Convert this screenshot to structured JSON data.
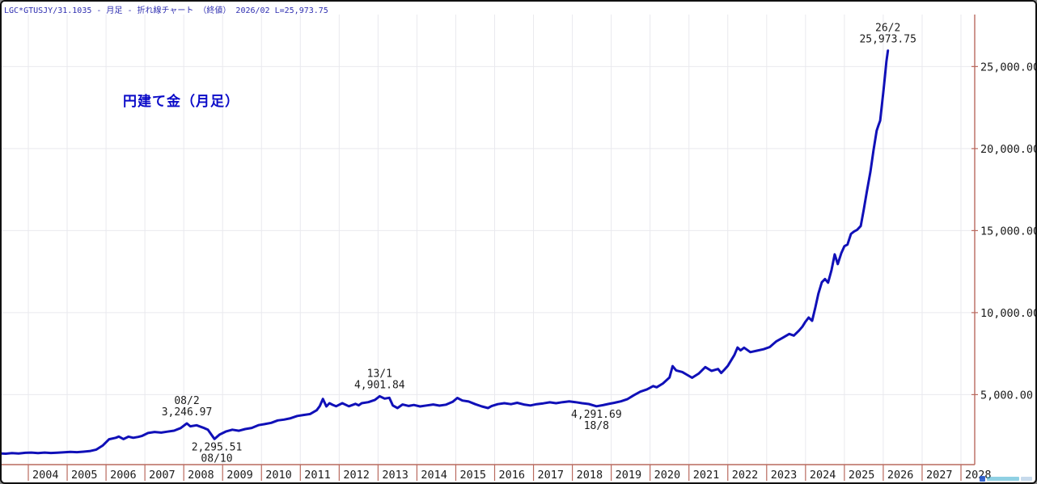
{
  "header": {
    "title": "LGC*GTUSJY/31.1035 - 月足 - 折れ線チャート （終値）  2026/02 L=25,973.75"
  },
  "chart_title": "円建て金（月足）",
  "colors": {
    "line": "#1010b8",
    "axis": "#b96a5f",
    "grid": "#e9e9ee",
    "header_text": "#2e2eb0",
    "title_text": "#0a0ac8",
    "label_text": "#1a1a1a",
    "watermark": [
      "#2255cc",
      "#33aacc",
      "#99bbdd"
    ]
  },
  "chart_data": {
    "type": "line",
    "title": "円建て金（月足）",
    "subtitle": "LGC*GTUSJY/31.1035 - 月足 - 折れ線チャート （終値）",
    "latest": {
      "date": "26/2",
      "close": 25973.75
    },
    "xlabel": "",
    "ylabel": "",
    "x_ticks": [
      2004,
      2005,
      2006,
      2007,
      2008,
      2009,
      2010,
      2011,
      2012,
      2013,
      2014,
      2015,
      2016,
      2017,
      2018,
      2019,
      2020,
      2021,
      2022,
      2023,
      2024,
      2025,
      2026,
      2027,
      2028
    ],
    "y_ticks": [
      {
        "value": 5000,
        "label": "5,000.00"
      },
      {
        "value": 10000,
        "label": "10,000.00"
      },
      {
        "value": 15000,
        "label": "15,000.00"
      },
      {
        "value": 20000,
        "label": "20,000.00"
      },
      {
        "value": 25000,
        "label": "25,000.00"
      }
    ],
    "x_range": [
      2003.25,
      2028.95
    ],
    "y_range": [
      700,
      28200
    ],
    "grid": true,
    "legend_position": "none",
    "annotations": [
      {
        "x": 2008.08,
        "value": 3246.97,
        "lines": [
          "08/2",
          "3,246.97"
        ],
        "position": "above"
      },
      {
        "x": 2008.85,
        "value": 2295.51,
        "lines": [
          "2,295.51",
          "08/10"
        ],
        "position": "below"
      },
      {
        "x": 2013.04,
        "value": 4901.84,
        "lines": [
          "13/1",
          "4,901.84"
        ],
        "position": "above"
      },
      {
        "x": 2018.62,
        "value": 4291.69,
        "lines": [
          "4,291.69",
          "18/8"
        ],
        "position": "below"
      },
      {
        "x": 2026.12,
        "value": 25973.75,
        "lines": [
          "26/2",
          "25,973.75"
        ],
        "position": "above"
      }
    ],
    "series": [
      {
        "name": "LGC*GTUSJY/31.1035 終値",
        "points": [
          [
            2003.27,
            1420
          ],
          [
            2003.42,
            1400
          ],
          [
            2003.58,
            1435
          ],
          [
            2003.75,
            1415
          ],
          [
            2003.92,
            1455
          ],
          [
            2004.08,
            1470
          ],
          [
            2004.25,
            1440
          ],
          [
            2004.42,
            1468
          ],
          [
            2004.58,
            1445
          ],
          [
            2004.75,
            1462
          ],
          [
            2004.92,
            1490
          ],
          [
            2005.08,
            1505
          ],
          [
            2005.25,
            1492
          ],
          [
            2005.42,
            1520
          ],
          [
            2005.58,
            1555
          ],
          [
            2005.75,
            1650
          ],
          [
            2005.92,
            1905
          ],
          [
            2006.08,
            2280
          ],
          [
            2006.25,
            2370
          ],
          [
            2006.33,
            2445
          ],
          [
            2006.45,
            2290
          ],
          [
            2006.58,
            2440
          ],
          [
            2006.7,
            2370
          ],
          [
            2006.83,
            2425
          ],
          [
            2006.92,
            2480
          ],
          [
            2007.08,
            2660
          ],
          [
            2007.25,
            2725
          ],
          [
            2007.42,
            2685
          ],
          [
            2007.58,
            2745
          ],
          [
            2007.75,
            2805
          ],
          [
            2007.92,
            2960
          ],
          [
            2008.08,
            3246.97
          ],
          [
            2008.17,
            3070
          ],
          [
            2008.33,
            3135
          ],
          [
            2008.5,
            2985
          ],
          [
            2008.62,
            2860
          ],
          [
            2008.79,
            2295.51
          ],
          [
            2008.92,
            2560
          ],
          [
            2009.08,
            2750
          ],
          [
            2009.25,
            2860
          ],
          [
            2009.42,
            2800
          ],
          [
            2009.58,
            2900
          ],
          [
            2009.75,
            2970
          ],
          [
            2009.92,
            3140
          ],
          [
            2010.08,
            3200
          ],
          [
            2010.25,
            3280
          ],
          [
            2010.42,
            3430
          ],
          [
            2010.58,
            3480
          ],
          [
            2010.75,
            3560
          ],
          [
            2010.92,
            3700
          ],
          [
            2011.08,
            3760
          ],
          [
            2011.25,
            3820
          ],
          [
            2011.42,
            4050
          ],
          [
            2011.5,
            4300
          ],
          [
            2011.58,
            4740
          ],
          [
            2011.67,
            4280
          ],
          [
            2011.75,
            4480
          ],
          [
            2011.83,
            4380
          ],
          [
            2011.92,
            4290
          ],
          [
            2012.08,
            4480
          ],
          [
            2012.25,
            4290
          ],
          [
            2012.42,
            4440
          ],
          [
            2012.5,
            4350
          ],
          [
            2012.58,
            4480
          ],
          [
            2012.75,
            4540
          ],
          [
            2012.92,
            4680
          ],
          [
            2013.04,
            4901.84
          ],
          [
            2013.17,
            4760
          ],
          [
            2013.29,
            4810
          ],
          [
            2013.38,
            4340
          ],
          [
            2013.5,
            4180
          ],
          [
            2013.63,
            4400
          ],
          [
            2013.79,
            4310
          ],
          [
            2013.92,
            4370
          ],
          [
            2014.08,
            4280
          ],
          [
            2014.25,
            4340
          ],
          [
            2014.42,
            4400
          ],
          [
            2014.58,
            4330
          ],
          [
            2014.75,
            4390
          ],
          [
            2014.92,
            4560
          ],
          [
            2015.04,
            4800
          ],
          [
            2015.17,
            4640
          ],
          [
            2015.33,
            4580
          ],
          [
            2015.5,
            4420
          ],
          [
            2015.67,
            4280
          ],
          [
            2015.83,
            4180
          ],
          [
            2015.92,
            4300
          ],
          [
            2016.08,
            4420
          ],
          [
            2016.25,
            4480
          ],
          [
            2016.42,
            4420
          ],
          [
            2016.58,
            4500
          ],
          [
            2016.75,
            4400
          ],
          [
            2016.92,
            4340
          ],
          [
            2017.08,
            4420
          ],
          [
            2017.25,
            4470
          ],
          [
            2017.42,
            4530
          ],
          [
            2017.58,
            4480
          ],
          [
            2017.75,
            4540
          ],
          [
            2017.92,
            4590
          ],
          [
            2018.08,
            4540
          ],
          [
            2018.25,
            4480
          ],
          [
            2018.42,
            4430
          ],
          [
            2018.62,
            4291.69
          ],
          [
            2018.79,
            4360
          ],
          [
            2018.92,
            4430
          ],
          [
            2019.08,
            4500
          ],
          [
            2019.25,
            4590
          ],
          [
            2019.42,
            4730
          ],
          [
            2019.58,
            4960
          ],
          [
            2019.75,
            5180
          ],
          [
            2019.92,
            5320
          ],
          [
            2020.08,
            5520
          ],
          [
            2020.17,
            5450
          ],
          [
            2020.33,
            5680
          ],
          [
            2020.5,
            6050
          ],
          [
            2020.58,
            6740
          ],
          [
            2020.67,
            6480
          ],
          [
            2020.83,
            6380
          ],
          [
            2020.92,
            6250
          ],
          [
            2021.08,
            6030
          ],
          [
            2021.25,
            6280
          ],
          [
            2021.42,
            6680
          ],
          [
            2021.58,
            6450
          ],
          [
            2021.75,
            6560
          ],
          [
            2021.83,
            6320
          ],
          [
            2021.92,
            6540
          ],
          [
            2022.0,
            6760
          ],
          [
            2022.17,
            7420
          ],
          [
            2022.25,
            7870
          ],
          [
            2022.33,
            7700
          ],
          [
            2022.42,
            7860
          ],
          [
            2022.58,
            7590
          ],
          [
            2022.75,
            7680
          ],
          [
            2022.92,
            7770
          ],
          [
            2023.08,
            7900
          ],
          [
            2023.25,
            8250
          ],
          [
            2023.42,
            8480
          ],
          [
            2023.58,
            8700
          ],
          [
            2023.7,
            8600
          ],
          [
            2023.83,
            8900
          ],
          [
            2023.92,
            9150
          ],
          [
            2024.0,
            9450
          ],
          [
            2024.08,
            9700
          ],
          [
            2024.17,
            9500
          ],
          [
            2024.25,
            10300
          ],
          [
            2024.33,
            11150
          ],
          [
            2024.42,
            11850
          ],
          [
            2024.5,
            12050
          ],
          [
            2024.58,
            11830
          ],
          [
            2024.67,
            12600
          ],
          [
            2024.75,
            13550
          ],
          [
            2024.83,
            12960
          ],
          [
            2024.92,
            13620
          ],
          [
            2025.0,
            14050
          ],
          [
            2025.08,
            14150
          ],
          [
            2025.17,
            14800
          ],
          [
            2025.25,
            14950
          ],
          [
            2025.33,
            15050
          ],
          [
            2025.42,
            15280
          ],
          [
            2025.5,
            16300
          ],
          [
            2025.58,
            17400
          ],
          [
            2025.67,
            18600
          ],
          [
            2025.75,
            19900
          ],
          [
            2025.83,
            21100
          ],
          [
            2025.88,
            21450
          ],
          [
            2025.92,
            21700
          ],
          [
            2026.0,
            23400
          ],
          [
            2026.04,
            24300
          ],
          [
            2026.08,
            25300
          ],
          [
            2026.12,
            25973.75
          ]
        ]
      }
    ]
  }
}
